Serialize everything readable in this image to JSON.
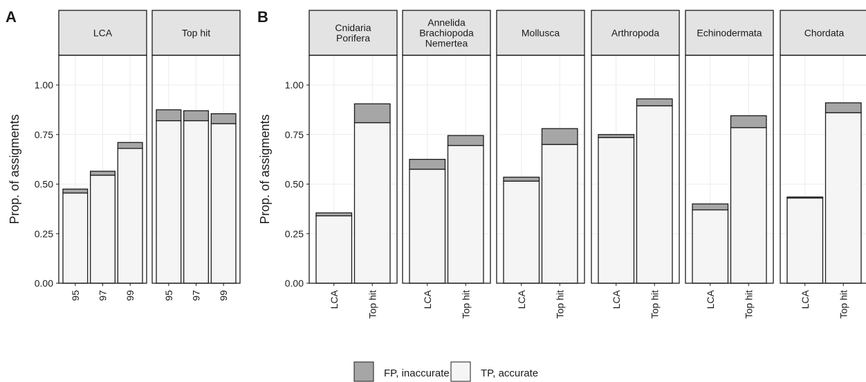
{
  "panel_letters": [
    "A",
    "B"
  ],
  "colors": {
    "fp": "#a6a6a6",
    "tp": "#f5f5f5",
    "frame": "#1a1a1a",
    "strip": "#e3e3e3",
    "grid": "#ececec"
  },
  "legend": {
    "items": [
      {
        "key": "fp",
        "label": "FP, inaccurate"
      },
      {
        "key": "tp",
        "label": "TP, accurate"
      }
    ]
  },
  "chart_data": [
    {
      "panel": "A",
      "type": "bar",
      "stacked": true,
      "ylabel": "Prop. of assigments",
      "ylim": [
        0,
        1.15
      ],
      "yticks": [
        "0.00",
        "0.25",
        "0.50",
        "0.75",
        "1.00"
      ],
      "facets": [
        {
          "title": [
            "LCA"
          ],
          "categories": [
            "95",
            "97",
            "99"
          ],
          "series": [
            {
              "name": "TP, accurate",
              "values": [
                0.455,
                0.545,
                0.68
              ]
            },
            {
              "name": "FP, inaccurate",
              "values": [
                0.02,
                0.02,
                0.03
              ]
            }
          ]
        },
        {
          "title": [
            "Top hit"
          ],
          "categories": [
            "95",
            "97",
            "99"
          ],
          "series": [
            {
              "name": "TP, accurate",
              "values": [
                0.82,
                0.82,
                0.805
              ]
            },
            {
              "name": "FP, inaccurate",
              "values": [
                0.055,
                0.05,
                0.05
              ]
            }
          ]
        }
      ]
    },
    {
      "panel": "B",
      "type": "bar",
      "stacked": true,
      "ylabel": "Prop. of assigments",
      "ylim": [
        0,
        1.15
      ],
      "yticks": [
        "0.00",
        "0.25",
        "0.50",
        "0.75",
        "1.00"
      ],
      "facets": [
        {
          "title": [
            "Cnidaria",
            "Porifera"
          ],
          "categories": [
            "LCA",
            "Top hit"
          ],
          "series": [
            {
              "name": "TP, accurate",
              "values": [
                0.34,
                0.81
              ]
            },
            {
              "name": "FP, inaccurate",
              "values": [
                0.015,
                0.095
              ]
            }
          ]
        },
        {
          "title": [
            "Annelida",
            "Brachiopoda",
            "Nemertea"
          ],
          "categories": [
            "LCA",
            "Top hit"
          ],
          "series": [
            {
              "name": "TP, accurate",
              "values": [
                0.575,
                0.695
              ]
            },
            {
              "name": "FP, inaccurate",
              "values": [
                0.05,
                0.05
              ]
            }
          ]
        },
        {
          "title": [
            "Mollusca"
          ],
          "categories": [
            "LCA",
            "Top hit"
          ],
          "series": [
            {
              "name": "TP, accurate",
              "values": [
                0.515,
                0.7
              ]
            },
            {
              "name": "FP, inaccurate",
              "values": [
                0.02,
                0.08
              ]
            }
          ]
        },
        {
          "title": [
            "Arthropoda"
          ],
          "categories": [
            "LCA",
            "Top hit"
          ],
          "series": [
            {
              "name": "TP, accurate",
              "values": [
                0.735,
                0.895
              ]
            },
            {
              "name": "FP, inaccurate",
              "values": [
                0.015,
                0.035
              ]
            }
          ]
        },
        {
          "title": [
            "Echinodermata"
          ],
          "categories": [
            "LCA",
            "Top hit"
          ],
          "series": [
            {
              "name": "TP, accurate",
              "values": [
                0.37,
                0.785
              ]
            },
            {
              "name": "FP, inaccurate",
              "values": [
                0.03,
                0.06
              ]
            }
          ]
        },
        {
          "title": [
            "Chordata"
          ],
          "categories": [
            "LCA",
            "Top hit"
          ],
          "series": [
            {
              "name": "TP, accurate",
              "values": [
                0.43,
                0.86
              ]
            },
            {
              "name": "FP, inaccurate",
              "values": [
                0.005,
                0.05
              ]
            }
          ]
        }
      ]
    }
  ]
}
